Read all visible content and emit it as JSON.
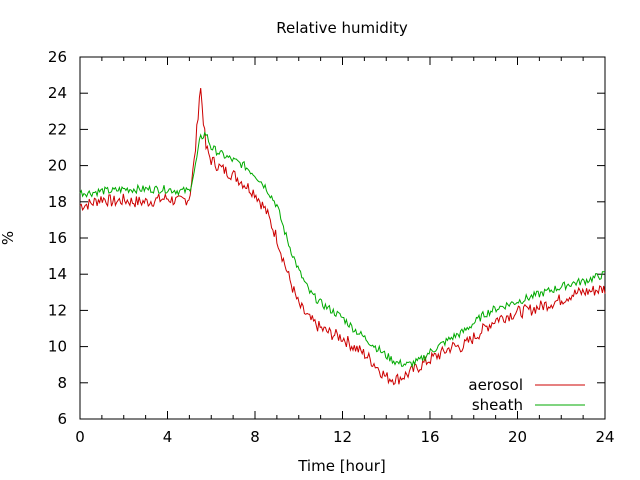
{
  "chart_data": {
    "type": "line",
    "title": "Relative humidity",
    "xlabel": "Time [hour]",
    "ylabel": "%",
    "xlim": [
      0,
      24
    ],
    "ylim": [
      6,
      26
    ],
    "xticks": [
      "0",
      "4",
      "8",
      "12",
      "16",
      "20",
      "24"
    ],
    "yticks": [
      "6",
      "8",
      "10",
      "12",
      "14",
      "16",
      "18",
      "20",
      "22",
      "24",
      "26"
    ],
    "grid": false,
    "legend": "bottom-right",
    "series": [
      {
        "name": "aerosol",
        "color": "#cc0000",
        "x": [
          0,
          0.5,
          1,
          1.5,
          2,
          2.5,
          3,
          3.5,
          4,
          4.5,
          5,
          5.25,
          5.5,
          5.75,
          6,
          6.5,
          7,
          7.5,
          8,
          8.5,
          9,
          9.5,
          10,
          10.5,
          11,
          11.5,
          12,
          12.5,
          13,
          13.5,
          14,
          14.5,
          15,
          15.5,
          16,
          16.5,
          17,
          17.5,
          18,
          18.5,
          19,
          19.5,
          20,
          20.5,
          21,
          21.5,
          22,
          22.5,
          23,
          23.5,
          24
        ],
        "values": [
          17.8,
          17.9,
          18.2,
          18.0,
          18.1,
          18.0,
          18.0,
          18.1,
          18.2,
          18.0,
          18.2,
          20.5,
          24.5,
          21.0,
          20.3,
          19.8,
          19.5,
          19.0,
          18.5,
          17.5,
          16.0,
          14.0,
          12.3,
          11.5,
          11.0,
          10.7,
          10.5,
          10.0,
          9.6,
          9.0,
          8.3,
          8.2,
          8.5,
          8.9,
          9.3,
          9.6,
          10.0,
          10.0,
          10.5,
          11.0,
          11.5,
          11.7,
          11.9,
          12.0,
          12.2,
          12.4,
          12.6,
          12.9,
          13.0,
          13.1,
          13.2
        ]
      },
      {
        "name": "sheath",
        "color": "#00aa00",
        "x": [
          0,
          0.5,
          1,
          1.5,
          2,
          2.5,
          3,
          3.5,
          4,
          4.5,
          5,
          5.25,
          5.5,
          5.75,
          6,
          6.5,
          7,
          7.5,
          8,
          8.5,
          9,
          9.5,
          10,
          10.5,
          11,
          11.5,
          12,
          12.5,
          13,
          13.5,
          14,
          14.5,
          15,
          15.5,
          16,
          16.5,
          17,
          17.5,
          18,
          18.5,
          19,
          19.5,
          20,
          20.5,
          21,
          21.5,
          22,
          22.5,
          23,
          23.5,
          24
        ],
        "values": [
          18.5,
          18.5,
          18.6,
          18.6,
          18.7,
          18.7,
          18.7,
          18.7,
          18.7,
          18.6,
          18.6,
          19.8,
          21.5,
          21.8,
          21.0,
          20.6,
          20.3,
          20.0,
          19.5,
          18.8,
          17.8,
          15.8,
          14.2,
          13.0,
          12.4,
          12.0,
          11.6,
          11.0,
          10.5,
          10.0,
          9.5,
          9.1,
          9.0,
          9.2,
          9.7,
          10.1,
          10.5,
          10.8,
          11.3,
          11.8,
          12.1,
          12.3,
          12.5,
          12.7,
          12.9,
          13.1,
          13.3,
          13.5,
          13.6,
          13.8,
          14.0
        ]
      }
    ]
  }
}
